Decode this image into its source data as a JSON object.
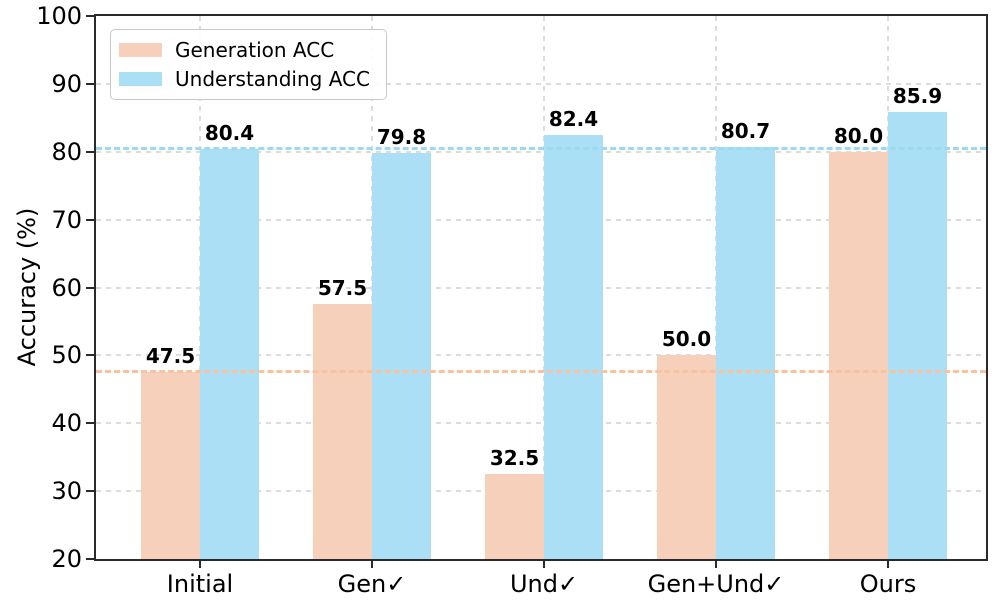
{
  "chart_data": {
    "type": "bar",
    "title": "",
    "xlabel": "",
    "ylabel": "Accuracy (%)",
    "ylim": [
      20,
      100
    ],
    "yticks": [
      20,
      30,
      40,
      50,
      60,
      70,
      80,
      90,
      100
    ],
    "grid": "dashed light-gray horizontal and vertical gridlines",
    "legend_position": "upper left",
    "categories": [
      "Initial",
      "Gen✓",
      "Und✓",
      "Gen+Und✓",
      "Ours"
    ],
    "series": [
      {
        "name": "Generation ACC",
        "color": "#F6D0BA",
        "values": [
          47.5,
          57.5,
          32.5,
          50.0,
          80.0
        ]
      },
      {
        "name": "Understanding ACC",
        "color": "#ABDFF6",
        "values": [
          80.4,
          79.8,
          82.4,
          80.7,
          85.9
        ]
      }
    ],
    "value_labels_shown": true,
    "reference_lines": [
      {
        "value": 47.5,
        "color": "#F6C29F",
        "style": "dashed",
        "meaning": "Initial Generation ACC baseline"
      },
      {
        "value": 80.4,
        "color": "#9ED9F4",
        "style": "dashed",
        "meaning": "Initial Understanding ACC baseline"
      }
    ],
    "colors": {
      "axis": "#2a2a2a",
      "grid": "#dcdcdc",
      "value_label": "#000000"
    }
  }
}
